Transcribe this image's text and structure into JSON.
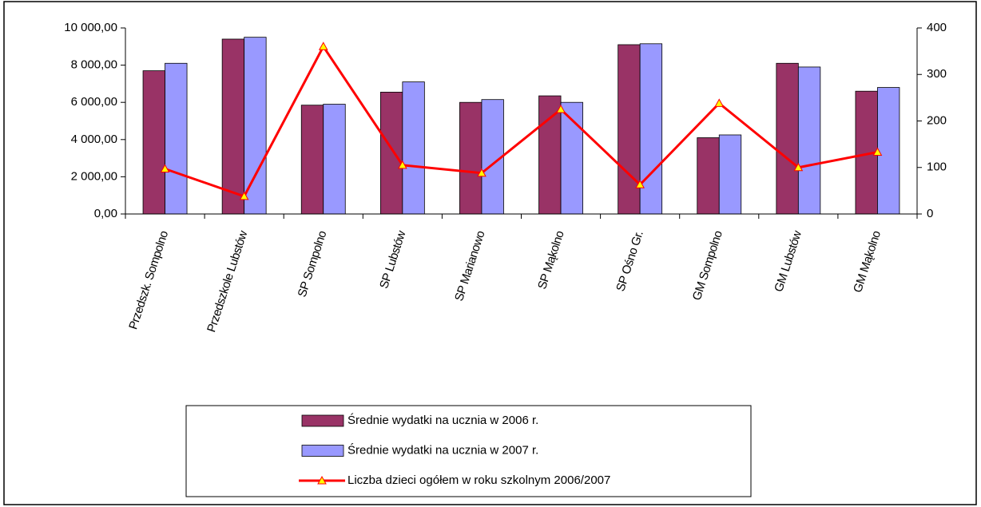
{
  "chart_data": {
    "type": "bar",
    "categories": [
      "Przedszk. Sompolno",
      "Przedszkole Lubstów",
      "SP Sompolno",
      "SP Lubstów",
      "SP Marianowo",
      "SP Mąkolno",
      "SP Ośno Gr.",
      "GM Sompolno",
      "GM Lubstów",
      "GM Mąkolno"
    ],
    "series": [
      {
        "name": "Średnie wydatki na ucznia w 2006 r.",
        "color": "#993366",
        "type": "bar",
        "values": [
          7700,
          9400,
          5850,
          6550,
          6000,
          6350,
          9100,
          4100,
          8100,
          6600
        ]
      },
      {
        "name": "Średnie wydatki na ucznia w 2007 r.",
        "color": "#9999ff",
        "type": "bar",
        "values": [
          8100,
          9500,
          5900,
          7100,
          6150,
          6000,
          9150,
          4250,
          7900,
          6800
        ]
      },
      {
        "name": "Liczba dzieci ogółem w roku szkolnym 2006/2007",
        "color": "#ff0000",
        "type": "line",
        "axis": "y2",
        "values": [
          97,
          38,
          360,
          105,
          88,
          225,
          63,
          238,
          100,
          133
        ]
      }
    ],
    "ylim": [
      0,
      10000
    ],
    "yticks": [
      {
        "value": 0,
        "label": "0,00"
      },
      {
        "value": 2000,
        "label": "2 000,00"
      },
      {
        "value": 4000,
        "label": "4 000,00"
      },
      {
        "value": 6000,
        "label": "6 000,00"
      },
      {
        "value": 8000,
        "label": "8 000,00"
      },
      {
        "value": 10000,
        "label": "10 000,00"
      }
    ],
    "y2lim": [
      0,
      400
    ],
    "y2ticks": [
      0,
      100,
      200,
      300,
      400
    ],
    "grid": false,
    "legend": "bottom"
  }
}
